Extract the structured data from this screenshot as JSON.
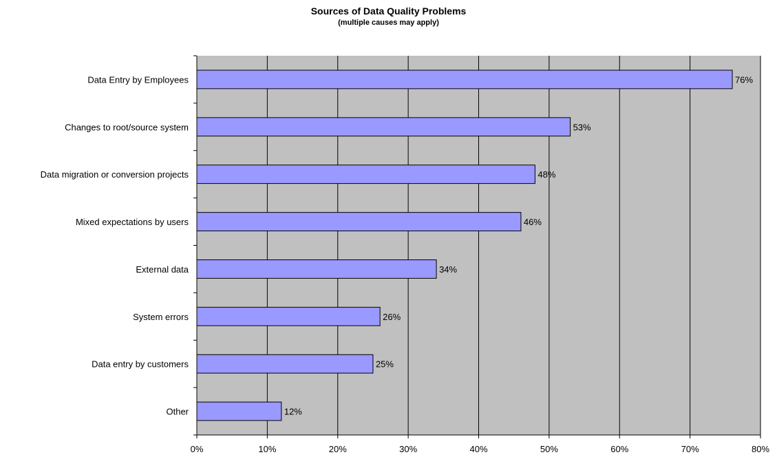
{
  "chart_data": {
    "type": "bar",
    "orientation": "horizontal",
    "title": "Sources of Data Quality Problems",
    "subtitle": "(multiple causes may apply)",
    "xlabel": "",
    "ylabel": "",
    "categories": [
      "Data Entry by Employees",
      "Changes to root/source system",
      "Data migration or conversion projects",
      "Mixed expectations by users",
      "External data",
      "System errors",
      "Data entry by customers",
      "Other"
    ],
    "values": [
      76,
      53,
      48,
      46,
      34,
      26,
      25,
      12
    ],
    "data_labels": [
      "76%",
      "53%",
      "48%",
      "46%",
      "34%",
      "26%",
      "25%",
      "12%"
    ],
    "xlim": [
      0,
      80
    ],
    "xticks": [
      "0%",
      "10%",
      "20%",
      "30%",
      "40%",
      "50%",
      "60%",
      "70%",
      "80%"
    ],
    "grid": "vertical",
    "legend": "none",
    "colors": {
      "bar": "#9999ff",
      "bar_border": "#000000",
      "plot_background": "#c0c0c0",
      "gridline": "#000000"
    }
  }
}
